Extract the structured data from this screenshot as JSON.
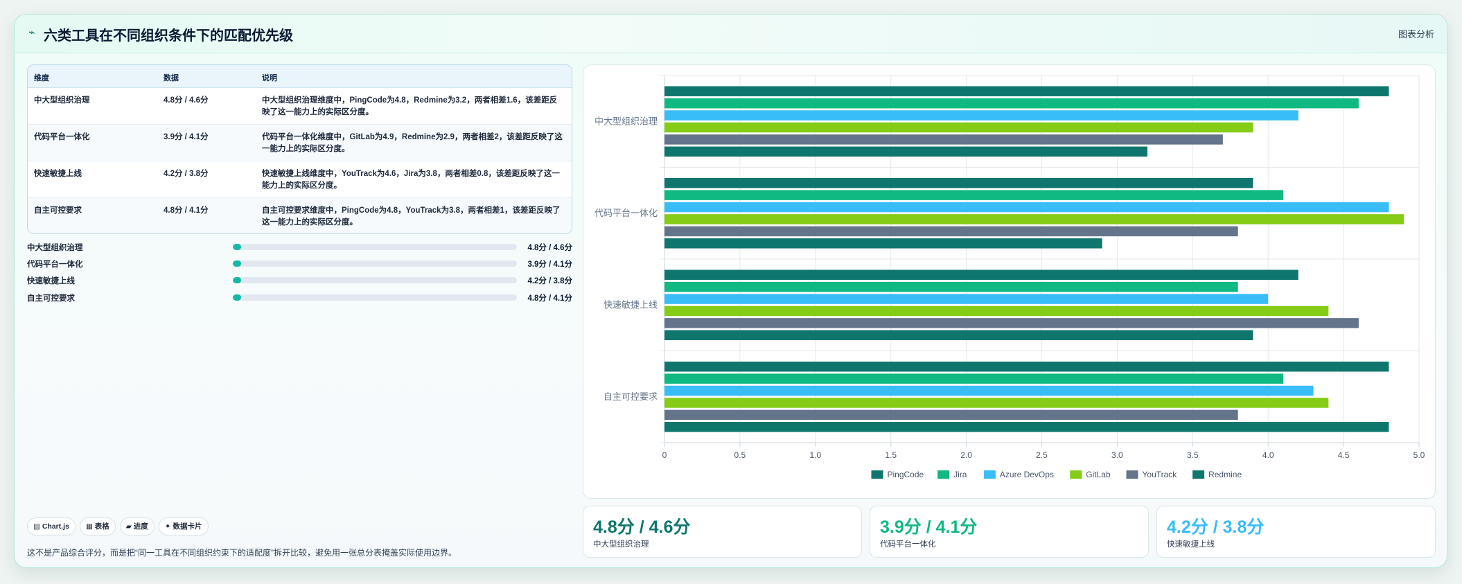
{
  "header": {
    "icon": "trend-icon",
    "title": "六类工具在不同组织条件下的匹配优先级",
    "tag": "图表分析"
  },
  "table": {
    "columns": [
      "维度",
      "数据",
      "说明"
    ],
    "rows": [
      {
        "dim": "中大型组织治理",
        "data": "4.8分 / 4.6分",
        "desc": "中大型组织治理维度中，PingCode为4.8，Redmine为3.2，两者相差1.6，该差距反映了这一能力上的实际区分度。"
      },
      {
        "dim": "代码平台一体化",
        "data": "3.9分 / 4.1分",
        "desc": "代码平台一体化维度中，GitLab为4.9，Redmine为2.9，两者相差2，该差距反映了这一能力上的实际区分度。"
      },
      {
        "dim": "快速敏捷上线",
        "data": "4.2分 / 3.8分",
        "desc": "快速敏捷上线维度中，YouTrack为4.6，Jira为3.8，两者相差0.8，该差距反映了这一能力上的实际区分度。"
      },
      {
        "dim": "自主可控要求",
        "data": "4.8分 / 4.1分",
        "desc": "自主可控要求维度中，PingCode为4.8，YouTrack为3.8，两者相差1，该差距反映了这一能力上的实际区分度。"
      }
    ]
  },
  "progress": [
    {
      "label": "中大型组织治理",
      "value": "4.8分 / 4.6分",
      "fill": 0.03
    },
    {
      "label": "代码平台一体化",
      "value": "3.9分 / 4.1分",
      "fill": 0.03
    },
    {
      "label": "快速敏捷上线",
      "value": "4.2分 / 3.8分",
      "fill": 0.03
    },
    {
      "label": "自主可控要求",
      "value": "4.8分 / 4.1分",
      "fill": 0.03
    }
  ],
  "chips": [
    "▤ Chart.js",
    "▦ 表格",
    "▰ 进度",
    "✦ 数据卡片"
  ],
  "note": "这不是产品综合评分，而是把“同一工具在不同组织约束下的适配度”拆开比较，避免用一张总分表掩盖实际使用边界。",
  "kpis": [
    {
      "value": "4.8分 / 4.6分",
      "label": "中大型组织治理",
      "color": "#0f766e"
    },
    {
      "value": "3.9分 / 4.1分",
      "label": "代码平台一体化",
      "color": "#10b981"
    },
    {
      "value": "4.2分 / 3.8分",
      "label": "快速敏捷上线",
      "color": "#38bdf8"
    }
  ],
  "chart_data": {
    "type": "bar",
    "orientation": "horizontal",
    "categories": [
      "中大型组织治理",
      "代码平台一体化",
      "快速敏捷上线",
      "自主可控要求"
    ],
    "series": [
      {
        "name": "PingCode",
        "color": "#0f766e",
        "values": [
          4.8,
          3.9,
          4.2,
          4.8
        ]
      },
      {
        "name": "Jira",
        "color": "#10b981",
        "values": [
          4.6,
          4.1,
          3.8,
          4.1
        ]
      },
      {
        "name": "Azure DevOps",
        "color": "#38bdf8",
        "values": [
          4.2,
          4.8,
          4.0,
          4.3
        ]
      },
      {
        "name": "GitLab",
        "color": "#84cc16",
        "values": [
          3.9,
          4.9,
          4.4,
          4.4
        ]
      },
      {
        "name": "YouTrack",
        "color": "#64748b",
        "values": [
          3.7,
          3.8,
          4.6,
          3.8
        ]
      },
      {
        "name": "Redmine",
        "color": "#0f766e",
        "values": [
          3.2,
          2.9,
          3.9,
          4.8
        ]
      }
    ],
    "xlim": [
      0,
      5
    ],
    "xticks": [
      "0",
      "0.5",
      "1.0",
      "1.5",
      "2.0",
      "2.5",
      "3.0",
      "3.5",
      "4.0",
      "4.5",
      "5.0"
    ],
    "grid": true,
    "legend": "bottom"
  }
}
